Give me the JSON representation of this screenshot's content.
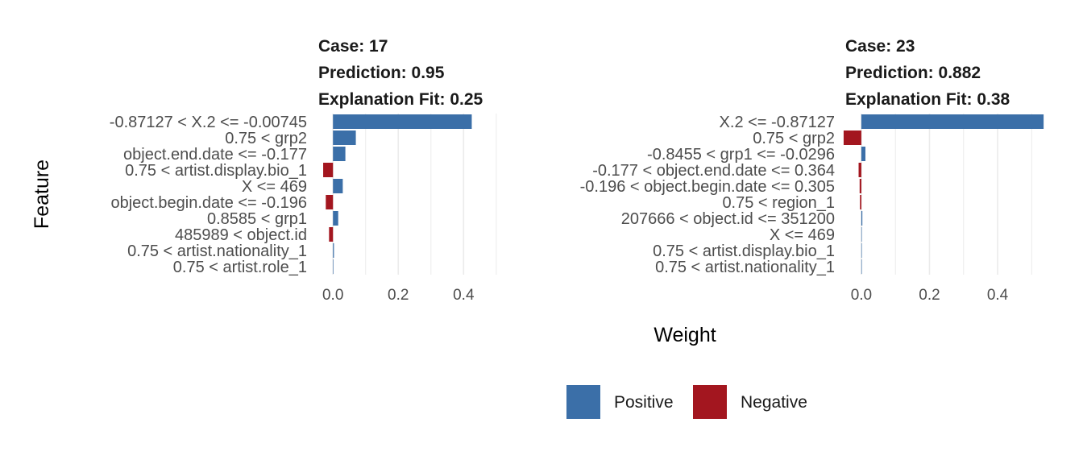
{
  "colors": {
    "positive": "#3b6fa8",
    "negative": "#a3161f",
    "grid": "#ebebeb"
  },
  "axes": {
    "xlabel": "Weight",
    "ylabel": "Feature"
  },
  "legend": {
    "placement": "bottom",
    "items": [
      {
        "label": "Positive",
        "color": "#3b6fa8"
      },
      {
        "label": "Negative",
        "color": "#a3161f"
      }
    ]
  },
  "chart_data": [
    {
      "type": "bar",
      "orientation": "horizontal",
      "title_lines": [
        "Case: 17",
        "Prediction: 0.95",
        "Explanation Fit: 0.25"
      ],
      "xlim": [
        -0.04,
        0.53
      ],
      "xticks": [
        0.0,
        0.2,
        0.4
      ],
      "xtick_labels": [
        "0.0",
        "0.2",
        "0.4"
      ],
      "grid": true,
      "categories": [
        "-0.87127 < X.2 <= -0.00745",
        "0.75 < grp2",
        "object.end.date <= -0.177",
        "0.75 < artist.display.bio_1",
        "X <= 469",
        "object.begin.date <= -0.196",
        "0.8585 < grp1",
        "485989 < object.id",
        "0.75 < artist.nationality_1",
        "0.75 < artist.role_1"
      ],
      "values": [
        0.425,
        0.07,
        0.038,
        -0.03,
        0.03,
        -0.022,
        0.016,
        -0.012,
        0.003,
        0.001
      ]
    },
    {
      "type": "bar",
      "orientation": "horizontal",
      "title_lines": [
        "Case: 23",
        "Prediction: 0.882",
        "Explanation Fit: 0.38"
      ],
      "xlim": [
        -0.04,
        0.53
      ],
      "xticks": [
        0.0,
        0.2,
        0.4
      ],
      "xtick_labels": [
        "0.0",
        "0.2",
        "0.4"
      ],
      "grid": true,
      "categories": [
        "X.2 <= -0.87127",
        "0.75 < grp2",
        "-0.8455 < grp1 <= -0.0296",
        "-0.177 < object.end.date <= 0.364",
        "-0.196 < object.begin.date <= 0.305",
        "0.75 < region_1",
        "207666 < object.id <= 351200",
        "X <= 469",
        "0.75 < artist.display.bio_1",
        "0.75 < artist.nationality_1"
      ],
      "values": [
        0.535,
        -0.052,
        0.012,
        -0.008,
        -0.005,
        -0.004,
        0.003,
        0.001,
        0.0005,
        0.0003
      ]
    }
  ]
}
